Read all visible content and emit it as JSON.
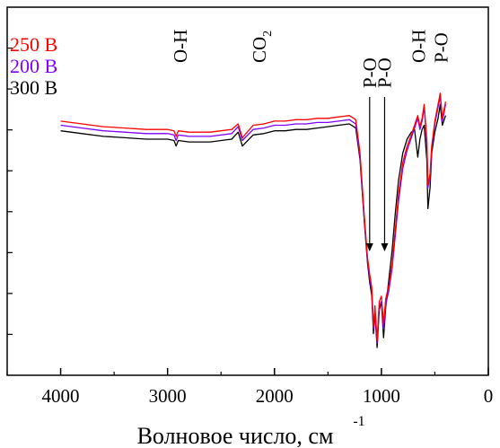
{
  "chart_data": {
    "type": "line",
    "xlabel": "Волновое число, см",
    "xlabel_superscript": "-1",
    "xlim": [
      4500,
      0
    ],
    "x_ticks": [
      4000,
      3000,
      2000,
      1000,
      0
    ],
    "x_tick_labels": [
      "4000",
      "3000",
      "2000",
      "1000",
      "0"
    ],
    "ylabel": "",
    "y_ticks_labeled": false,
    "grid": false,
    "legend_position": "top-left",
    "series": [
      {
        "name": "250 В",
        "color": "#ff0000",
        "points": [
          [
            4000,
            1.08
          ],
          [
            3800,
            1.06
          ],
          [
            3600,
            1.04
          ],
          [
            3400,
            1.03
          ],
          [
            3200,
            1.02
          ],
          [
            3000,
            1.02
          ],
          [
            2940,
            1.01
          ],
          [
            2920,
            0.97
          ],
          [
            2900,
            1.01
          ],
          [
            2800,
            1.0
          ],
          [
            2600,
            1.0
          ],
          [
            2400,
            1.02
          ],
          [
            2340,
            1.06
          ],
          [
            2300,
            0.96
          ],
          [
            2200,
            1.05
          ],
          [
            2100,
            1.06
          ],
          [
            2000,
            1.08
          ],
          [
            1900,
            1.08
          ],
          [
            1800,
            1.09
          ],
          [
            1700,
            1.09
          ],
          [
            1600,
            1.1
          ],
          [
            1500,
            1.1
          ],
          [
            1400,
            1.11
          ],
          [
            1300,
            1.12
          ],
          [
            1240,
            1.09
          ],
          [
            1200,
            0.85
          ],
          [
            1160,
            0.4
          ],
          [
            1130,
            0.1
          ],
          [
            1110,
            -0.02
          ],
          [
            1090,
            -0.12
          ],
          [
            1075,
            -0.4
          ],
          [
            1060,
            -0.25
          ],
          [
            1040,
            -0.5
          ],
          [
            1020,
            -0.22
          ],
          [
            1000,
            -0.18
          ],
          [
            980,
            -0.38
          ],
          [
            960,
            -0.2
          ],
          [
            930,
            -0.1
          ],
          [
            900,
            0.05
          ],
          [
            870,
            0.3
          ],
          [
            840,
            0.55
          ],
          [
            800,
            0.78
          ],
          [
            760,
            0.9
          ],
          [
            720,
            0.98
          ],
          [
            690,
            1.05
          ],
          [
            660,
            1.12
          ],
          [
            640,
            1.04
          ],
          [
            620,
            1.1
          ],
          [
            600,
            1.2
          ],
          [
            575,
            0.95
          ],
          [
            565,
            0.62
          ],
          [
            545,
            0.7
          ],
          [
            530,
            0.9
          ],
          [
            500,
            1.08
          ],
          [
            470,
            1.2
          ],
          [
            450,
            1.28
          ],
          [
            430,
            1.1
          ],
          [
            400,
            1.22
          ]
        ]
      },
      {
        "name": "200 В",
        "color": "#8000ff",
        "points": [
          [
            4000,
            1.05
          ],
          [
            3800,
            1.03
          ],
          [
            3600,
            1.01
          ],
          [
            3400,
            1.0
          ],
          [
            3200,
            0.99
          ],
          [
            3000,
            0.99
          ],
          [
            2940,
            0.98
          ],
          [
            2920,
            0.94
          ],
          [
            2900,
            0.98
          ],
          [
            2800,
            0.97
          ],
          [
            2600,
            0.97
          ],
          [
            2400,
            0.99
          ],
          [
            2340,
            1.04
          ],
          [
            2300,
            0.94
          ],
          [
            2200,
            1.02
          ],
          [
            2100,
            1.03
          ],
          [
            2000,
            1.05
          ],
          [
            1900,
            1.05
          ],
          [
            1800,
            1.06
          ],
          [
            1700,
            1.06
          ],
          [
            1600,
            1.07
          ],
          [
            1500,
            1.07
          ],
          [
            1400,
            1.08
          ],
          [
            1300,
            1.09
          ],
          [
            1240,
            1.06
          ],
          [
            1200,
            0.82
          ],
          [
            1160,
            0.38
          ],
          [
            1130,
            0.08
          ],
          [
            1110,
            -0.05
          ],
          [
            1090,
            -0.15
          ],
          [
            1075,
            -0.42
          ],
          [
            1060,
            -0.28
          ],
          [
            1040,
            -0.52
          ],
          [
            1020,
            -0.25
          ],
          [
            1000,
            -0.22
          ],
          [
            980,
            -0.42
          ],
          [
            960,
            -0.24
          ],
          [
            930,
            -0.14
          ],
          [
            900,
            0.02
          ],
          [
            870,
            0.26
          ],
          [
            840,
            0.5
          ],
          [
            800,
            0.74
          ],
          [
            760,
            0.87
          ],
          [
            720,
            0.96
          ],
          [
            690,
            1.03
          ],
          [
            660,
            1.1
          ],
          [
            640,
            1.02
          ],
          [
            620,
            1.08
          ],
          [
            600,
            1.18
          ],
          [
            575,
            0.92
          ],
          [
            565,
            0.6
          ],
          [
            545,
            0.68
          ],
          [
            530,
            0.88
          ],
          [
            500,
            1.06
          ],
          [
            470,
            1.18
          ],
          [
            450,
            1.26
          ],
          [
            430,
            1.08
          ],
          [
            400,
            1.2
          ]
        ]
      },
      {
        "name": "300 В",
        "color": "#000000",
        "points": [
          [
            4000,
            1.01
          ],
          [
            3800,
            0.99
          ],
          [
            3600,
            0.97
          ],
          [
            3400,
            0.96
          ],
          [
            3200,
            0.95
          ],
          [
            3000,
            0.95
          ],
          [
            2940,
            0.94
          ],
          [
            2920,
            0.9
          ],
          [
            2900,
            0.94
          ],
          [
            2800,
            0.93
          ],
          [
            2600,
            0.93
          ],
          [
            2400,
            0.95
          ],
          [
            2340,
            1.0
          ],
          [
            2300,
            0.9
          ],
          [
            2200,
            0.98
          ],
          [
            2100,
            0.99
          ],
          [
            2000,
            1.01
          ],
          [
            1900,
            1.01
          ],
          [
            1800,
            1.02
          ],
          [
            1700,
            1.02
          ],
          [
            1600,
            1.03
          ],
          [
            1500,
            1.04
          ],
          [
            1400,
            1.05
          ],
          [
            1300,
            1.06
          ],
          [
            1240,
            1.03
          ],
          [
            1200,
            0.8
          ],
          [
            1160,
            0.36
          ],
          [
            1130,
            0.06
          ],
          [
            1110,
            -0.08
          ],
          [
            1090,
            -0.18
          ],
          [
            1075,
            -0.45
          ],
          [
            1060,
            -0.3
          ],
          [
            1040,
            -0.55
          ],
          [
            1020,
            -0.28
          ],
          [
            1000,
            -0.22
          ],
          [
            980,
            -0.48
          ],
          [
            960,
            -0.26
          ],
          [
            930,
            -0.06
          ],
          [
            900,
            0.15
          ],
          [
            870,
            0.42
          ],
          [
            840,
            0.65
          ],
          [
            800,
            0.85
          ],
          [
            760,
            0.95
          ],
          [
            720,
            1.0
          ],
          [
            690,
            1.02
          ],
          [
            660,
            0.82
          ],
          [
            640,
            0.95
          ],
          [
            620,
            1.02
          ],
          [
            600,
            1.05
          ],
          [
            575,
            0.8
          ],
          [
            565,
            0.45
          ],
          [
            545,
            0.6
          ],
          [
            530,
            0.85
          ],
          [
            500,
            1.0
          ],
          [
            470,
            1.1
          ],
          [
            450,
            1.2
          ],
          [
            430,
            1.05
          ],
          [
            400,
            1.12
          ]
        ]
      }
    ],
    "annotations": [
      {
        "text": "O-H",
        "x": 2880
      },
      {
        "text": "CO",
        "subscript": "2",
        "x": 2140
      },
      {
        "text": "P-O",
        "x": 1110,
        "arrow": true
      },
      {
        "text": "P-O",
        "x": 970,
        "arrow": true
      },
      {
        "text": "O-H",
        "x": 650
      },
      {
        "text": "P-O",
        "x": 440
      }
    ]
  }
}
